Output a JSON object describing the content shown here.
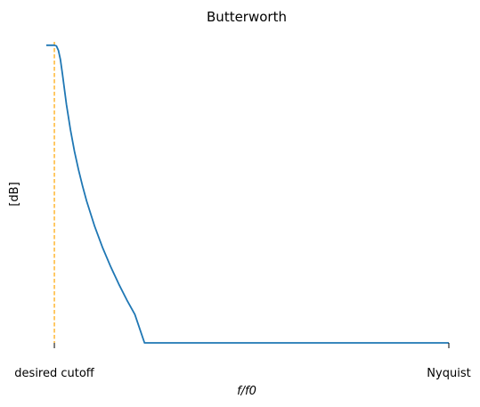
{
  "chart_data": {
    "type": "line",
    "title": "Butterworth",
    "xlabel": "f/f0",
    "ylabel": "[dB]",
    "x_ticks": [
      {
        "value": 0.02,
        "label": "desired cutoff"
      },
      {
        "value": 1.0,
        "label": "Nyquist"
      }
    ],
    "xlim": [
      0.0,
      1.0
    ],
    "ylim": [
      -88,
      1
    ],
    "grid": false,
    "y_ticks_visible": false,
    "cutoff_line": {
      "x": 0.02,
      "color": "#ffa500",
      "style": "dashed"
    },
    "series": [
      {
        "color": "#1f77b4",
        "x": [
          0.0,
          0.02,
          0.025,
          0.03,
          0.035,
          0.04,
          0.05,
          0.06,
          0.07,
          0.08,
          0.09,
          0.1,
          0.12,
          0.14,
          0.16,
          0.18,
          0.2,
          0.22,
          0.244,
          0.26,
          0.3,
          0.4,
          0.5,
          0.6,
          0.7,
          0.8,
          0.9,
          1.0
        ],
        "y": [
          0.0,
          0.0,
          -0.2,
          -1.5,
          -4.2,
          -8.4,
          -17.5,
          -25.0,
          -31.4,
          -36.8,
          -41.6,
          -46.0,
          -53.5,
          -59.9,
          -65.5,
          -70.6,
          -75.3,
          -79.6,
          -88.0,
          -88.0,
          -88.0,
          -88.0,
          -88.0,
          -88.0,
          -88.0,
          -88.0,
          -88.0,
          -88.0
        ]
      }
    ]
  }
}
